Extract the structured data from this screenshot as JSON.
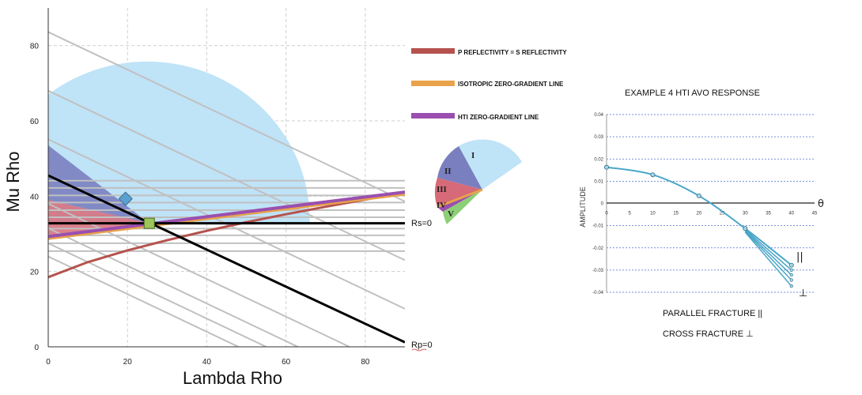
{
  "chart_data": [
    {
      "type": "line",
      "xlabel": "Lambda Rho",
      "ylabel": "Mu Rho",
      "xlim": [
        0,
        90
      ],
      "ylim": [
        0,
        90
      ],
      "xticks": [
        "0",
        "20",
        "40",
        "60",
        "80"
      ],
      "yticks": [
        "0",
        "20",
        "40",
        "60",
        "80"
      ],
      "grid": true,
      "colors": {
        "p_eq_s": "#b5524d",
        "isotropic_zero_gradient": "#e8a24a",
        "hti_zero_gradient": "#9a4fb0",
        "blue_region": "#bfe3f7",
        "zone_ii": "#7a7fbf",
        "zone_iii": "#d66a78",
        "zone_v": "#8ccf77",
        "lines": "#c0c0c0",
        "diamond": "#5aa0d0",
        "square": "#9cc55a"
      },
      "legend": [
        {
          "label": "P REFLECTIVITY  =  S REFLECTIVITY",
          "color": "#b5524d"
        },
        {
          "label": "ISOTROPIC ZERO-GRADIENT  LINE",
          "color": "#e8a24a"
        },
        {
          "label": "HTI ZERO-GRADIENT  LINE",
          "color": "#9a4fb0"
        }
      ],
      "annotations": {
        "rs": "Rs=0",
        "rp": "Rp=0"
      },
      "zones": [
        "I",
        "II",
        "III",
        "IV",
        "V"
      ],
      "markers": {
        "diamond": {
          "x": 19.5,
          "y": 39.3
        },
        "square": {
          "x": 25.5,
          "y": 32.8
        }
      },
      "rp_zero_line": {
        "x": [
          0,
          90
        ],
        "y": [
          45.5,
          1.2
        ]
      },
      "rs_zero_line": {
        "x": [
          0,
          90
        ],
        "y": [
          32.8,
          32.8
        ]
      },
      "p_eq_s_curve": {
        "x": [
          0,
          10,
          20,
          30,
          40,
          50,
          60,
          70,
          80,
          90
        ],
        "y": [
          18.5,
          22.5,
          25.6,
          28.3,
          30.8,
          33.1,
          35.2,
          37.2,
          39.1,
          41.0
        ]
      },
      "isotropic_line": {
        "x": [
          0,
          90
        ],
        "y": [
          28.8,
          40.6
        ]
      },
      "hti_line": {
        "x": [
          0,
          90
        ],
        "y": [
          29.3,
          41.1
        ]
      },
      "horizontal_lines_y": [
        44.1,
        42.2,
        40.2,
        38.3,
        36.3,
        34.4,
        32.8,
        31.4,
        29.6,
        27.5,
        25.4
      ],
      "sloped_lines": [
        {
          "x": [
            0,
            90
          ],
          "y": [
            83.6,
            38.6
          ]
        },
        {
          "x": [
            0,
            90
          ],
          "y": [
            68.0,
            23.0
          ]
        },
        {
          "x": [
            0,
            90
          ],
          "y": [
            55.1,
            10.1
          ]
        },
        {
          "x": [
            0,
            76
          ],
          "y": [
            38.0,
            0
          ]
        },
        {
          "x": [
            0,
            63
          ],
          "y": [
            31.5,
            0
          ]
        },
        {
          "x": [
            0,
            55
          ],
          "y": [
            27.5,
            0
          ]
        },
        {
          "x": [
            0,
            48
          ],
          "y": [
            24.0,
            0
          ]
        }
      ]
    },
    {
      "type": "line",
      "title": "EXAMPLE 4 HTI AVO RESPONSE",
      "ylabel": "AMPLITUDE",
      "xlim": [
        0,
        45
      ],
      "ylim": [
        -0.04,
        0.04
      ],
      "xticks": [
        "0",
        "5",
        "10",
        "15",
        "20",
        "25",
        "30",
        "35",
        "40",
        "45"
      ],
      "yticks": [
        "0.04",
        "0.03",
        "0.02",
        "0.01",
        "0",
        "-0.01",
        "-0.02",
        "-0.03",
        "-0.04"
      ],
      "x_symbol": "θ",
      "grid": true,
      "parallel_symbol": "||",
      "perpendicular_symbol": "⊥",
      "series": [
        {
          "x": [
            0,
            10,
            20,
            30,
            40
          ],
          "y": [
            0.0163,
            0.0129,
            0.0034,
            -0.0113,
            -0.0278
          ]
        },
        {
          "x": [
            30,
            40
          ],
          "y": [
            -0.0118,
            -0.03
          ]
        },
        {
          "x": [
            30,
            40
          ],
          "y": [
            -0.0122,
            -0.0322
          ]
        },
        {
          "x": [
            30,
            40
          ],
          "y": [
            -0.0126,
            -0.0345
          ]
        },
        {
          "x": [
            30,
            40
          ],
          "y": [
            -0.013,
            -0.0372
          ]
        }
      ],
      "color": "#4aa6c8",
      "captions": {
        "parallel": "PARALLEL FRACTURE ||",
        "cross": "CROSS FRACTURE ⊥"
      }
    }
  ]
}
